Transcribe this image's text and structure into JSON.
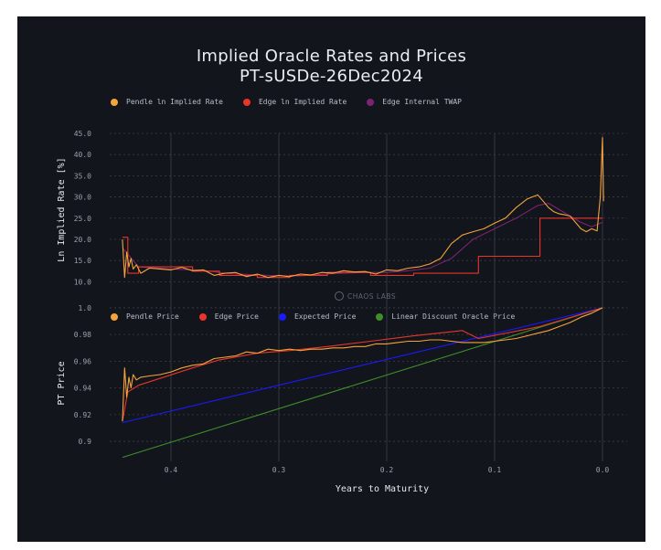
{
  "chart_data": [
    {
      "type": "line",
      "title": "Implied Oracle Rates and Prices",
      "subtitle": "PT-sUSDe-26Dec2024",
      "xlabel": "",
      "ylabel": "Ln Implied Rate [%]",
      "xlim": [
        0.45,
        -0.02
      ],
      "ylim": [
        9,
        45
      ],
      "yticks": [
        "10.0",
        "15.0",
        "20.0",
        "25.0",
        "30.0",
        "35.0",
        "40.0",
        "45.0"
      ],
      "grid": true,
      "legend_position": "top-left",
      "series": [
        {
          "name": "Pendle ln Implied Rate",
          "color": "#f5a33b",
          "x": [
            0.445,
            0.443,
            0.441,
            0.439,
            0.437,
            0.435,
            0.432,
            0.428,
            0.42,
            0.41,
            0.4,
            0.39,
            0.38,
            0.37,
            0.36,
            0.35,
            0.34,
            0.33,
            0.32,
            0.31,
            0.3,
            0.29,
            0.28,
            0.27,
            0.26,
            0.25,
            0.24,
            0.23,
            0.22,
            0.21,
            0.2,
            0.19,
            0.18,
            0.17,
            0.16,
            0.15,
            0.14,
            0.13,
            0.12,
            0.11,
            0.1,
            0.09,
            0.08,
            0.07,
            0.06,
            0.055,
            0.05,
            0.045,
            0.04,
            0.035,
            0.03,
            0.025,
            0.02,
            0.015,
            0.01,
            0.005,
            0.002,
            0.0,
            -0.001
          ],
          "y": [
            20.0,
            11.0,
            17.0,
            13.5,
            15.5,
            13.0,
            14.0,
            12.0,
            13.2,
            13.0,
            12.8,
            13.4,
            12.6,
            12.8,
            11.5,
            12.0,
            12.2,
            11.2,
            11.8,
            11.0,
            11.5,
            11.2,
            11.8,
            11.6,
            12.2,
            12.0,
            12.6,
            12.3,
            12.4,
            11.8,
            12.8,
            12.6,
            13.2,
            13.5,
            14.2,
            15.5,
            19.0,
            21.0,
            21.8,
            22.5,
            23.8,
            25.0,
            27.5,
            29.5,
            30.5,
            29.0,
            27.5,
            26.5,
            26.0,
            25.8,
            25.5,
            24.0,
            22.5,
            21.8,
            22.5,
            22.0,
            30.0,
            44.0,
            29.0
          ]
        },
        {
          "name": "Edge ln Implied Rate",
          "color": "#e8352a",
          "x": [
            0.445,
            0.44,
            0.44,
            0.43,
            0.43,
            0.38,
            0.38,
            0.355,
            0.355,
            0.32,
            0.32,
            0.29,
            0.29,
            0.255,
            0.255,
            0.215,
            0.215,
            0.175,
            0.175,
            0.13,
            0.13,
            0.115,
            0.115,
            0.058,
            0.058,
            0.0
          ],
          "y": [
            20.5,
            20.5,
            12.0,
            12.0,
            13.5,
            13.5,
            12.5,
            12.5,
            11.5,
            11.5,
            11.0,
            11.0,
            11.5,
            11.5,
            12.2,
            12.2,
            11.5,
            11.5,
            12.0,
            12.0,
            12.0,
            12.0,
            16.0,
            16.0,
            25.0,
            25.0
          ]
        },
        {
          "name": "Edge Internal TWAP",
          "color": "#7b2470",
          "x": [
            0.445,
            0.43,
            0.4,
            0.37,
            0.35,
            0.32,
            0.3,
            0.28,
            0.25,
            0.22,
            0.2,
            0.18,
            0.16,
            0.14,
            0.12,
            0.1,
            0.08,
            0.06,
            0.05,
            0.04,
            0.03,
            0.02,
            0.01,
            0.0
          ],
          "y": [
            18.0,
            13.5,
            13.0,
            12.7,
            12.0,
            11.6,
            11.4,
            11.4,
            11.9,
            12.2,
            12.2,
            12.6,
            13.2,
            15.5,
            20.0,
            22.5,
            25.0,
            28.0,
            28.5,
            27.0,
            25.5,
            24.0,
            23.0,
            24.0
          ]
        }
      ]
    },
    {
      "type": "line",
      "xlabel": "Years to Maturity",
      "ylabel": "PT Price",
      "xlim": [
        0.45,
        -0.02
      ],
      "ylim": [
        0.885,
        1.002
      ],
      "xticks": [
        "0.4",
        "0.3",
        "0.2",
        "0.1",
        "0.0"
      ],
      "yticks": [
        "0.9",
        "0.92",
        "0.94",
        "0.96",
        "0.98",
        "1.0"
      ],
      "grid": true,
      "legend_position": "top-left",
      "series": [
        {
          "name": "Pendle Price",
          "color": "#f5a33b",
          "x": [
            0.445,
            0.443,
            0.441,
            0.439,
            0.437,
            0.435,
            0.432,
            0.428,
            0.42,
            0.41,
            0.4,
            0.39,
            0.38,
            0.37,
            0.36,
            0.35,
            0.34,
            0.33,
            0.32,
            0.31,
            0.3,
            0.29,
            0.28,
            0.27,
            0.26,
            0.25,
            0.24,
            0.23,
            0.22,
            0.21,
            0.2,
            0.19,
            0.18,
            0.17,
            0.16,
            0.15,
            0.14,
            0.13,
            0.12,
            0.11,
            0.1,
            0.09,
            0.08,
            0.07,
            0.06,
            0.05,
            0.04,
            0.03,
            0.02,
            0.01,
            0.0
          ],
          "y": [
            0.915,
            0.955,
            0.933,
            0.948,
            0.94,
            0.95,
            0.946,
            0.948,
            0.949,
            0.95,
            0.952,
            0.955,
            0.957,
            0.958,
            0.962,
            0.963,
            0.964,
            0.967,
            0.966,
            0.969,
            0.968,
            0.969,
            0.968,
            0.969,
            0.969,
            0.97,
            0.97,
            0.971,
            0.971,
            0.973,
            0.973,
            0.974,
            0.975,
            0.975,
            0.976,
            0.976,
            0.975,
            0.974,
            0.974,
            0.974,
            0.975,
            0.976,
            0.977,
            0.979,
            0.981,
            0.983,
            0.986,
            0.989,
            0.993,
            0.996,
            1.0
          ]
        },
        {
          "name": "Edge Price",
          "color": "#e8352a",
          "x": [
            0.445,
            0.44,
            0.44,
            0.43,
            0.43,
            0.38,
            0.38,
            0.355,
            0.355,
            0.32,
            0.32,
            0.29,
            0.29,
            0.255,
            0.255,
            0.215,
            0.215,
            0.175,
            0.175,
            0.13,
            0.13,
            0.115,
            0.115,
            0.058,
            0.058,
            0.0
          ],
          "y": [
            0.915,
            0.937,
            0.937,
            0.942,
            0.942,
            0.955,
            0.955,
            0.961,
            0.961,
            0.966,
            0.966,
            0.968,
            0.968,
            0.971,
            0.971,
            0.975,
            0.975,
            0.979,
            0.979,
            0.983,
            0.983,
            0.977,
            0.977,
            0.986,
            0.986,
            1.0
          ]
        },
        {
          "name": "Expected Price",
          "color": "#1a1aff",
          "x": [
            0.445,
            0.0
          ],
          "y": [
            0.914,
            1.0
          ]
        },
        {
          "name": "Linear Discount Oracle Price",
          "color": "#3f8f29",
          "x": [
            0.445,
            0.0
          ],
          "y": [
            0.888,
            1.0
          ]
        }
      ]
    }
  ],
  "legends": {
    "top": [
      {
        "label": "Pendle ln Implied Rate",
        "color": "#f5a33b"
      },
      {
        "label": "Edge ln Implied Rate",
        "color": "#e8352a"
      },
      {
        "label": "Edge Internal TWAP",
        "color": "#7b2470"
      }
    ],
    "bottom": [
      {
        "label": "Pendle Price",
        "color": "#f5a33b"
      },
      {
        "label": "Edge Price",
        "color": "#e8352a"
      },
      {
        "label": "Expected Price",
        "color": "#1a1aff"
      },
      {
        "label": "Linear Discount Oracle Price",
        "color": "#3f8f29"
      }
    ]
  },
  "watermark": "CHAOS LABS",
  "colors": {
    "background": "#12151c",
    "grid": "#3a3f48",
    "text": "#e9ecf1"
  }
}
